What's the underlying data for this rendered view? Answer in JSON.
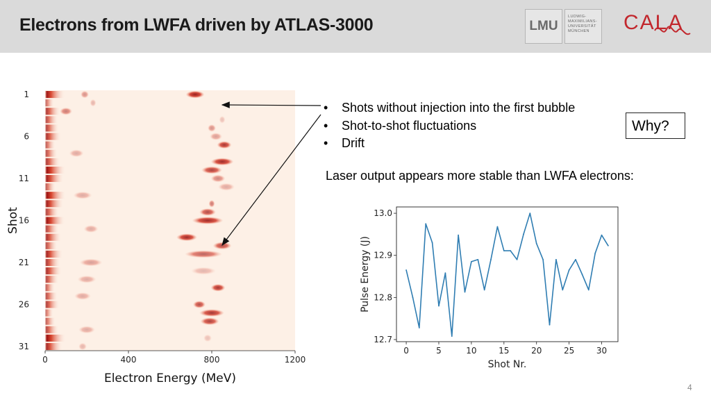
{
  "slide": {
    "title": "Electrons from LWFA driven by ATLAS-3000",
    "page_number": "4",
    "bullets": [
      "Shots without injection into the first bubble",
      "Shot-to-shot fluctuations",
      "Drift"
    ],
    "why_label": "Why?",
    "laser_statement": "Laser output appears more stable than LWFA electrons:"
  },
  "logos": {
    "lmu_mark": "LMU",
    "lmu_wordmark": [
      "LUDWIG-",
      "MAXIMILIANS-",
      "UNIVERSITÄT",
      "MÜNCHEN"
    ],
    "cala": "CALA",
    "cala_color": "#c2272d"
  },
  "colors": {
    "header_bg": "#dadada",
    "line_color": "#2f7db2",
    "heatmap_dark": "#8b0a0a",
    "heatmap_bg": "#fdf0e6"
  },
  "chart_data": [
    {
      "type": "heatmap",
      "xlabel": "Electron Energy (MeV)",
      "ylabel": "Shot",
      "xlim": [
        0,
        1200
      ],
      "ylim": [
        1,
        31
      ],
      "x_ticks": [
        0,
        400,
        800,
        1200
      ],
      "y_ticks": [
        1,
        6,
        11,
        16,
        21,
        26,
        31
      ],
      "y_inverted": true,
      "colormap": "Reds",
      "peaks": [
        {
          "shot": 1,
          "energy": 720,
          "width": 90,
          "intensity": 0.9
        },
        {
          "shot": 1,
          "energy": 190,
          "width": 40,
          "intensity": 0.4
        },
        {
          "shot": 2,
          "energy": 230,
          "width": 30,
          "intensity": 0.25
        },
        {
          "shot": 3,
          "energy": 100,
          "width": 60,
          "intensity": 0.5
        },
        {
          "shot": 4,
          "energy": 850,
          "width": 30,
          "intensity": 0.2
        },
        {
          "shot": 5,
          "energy": 800,
          "width": 40,
          "intensity": 0.4
        },
        {
          "shot": 6,
          "energy": 820,
          "width": 60,
          "intensity": 0.35
        },
        {
          "shot": 7,
          "energy": 860,
          "width": 70,
          "intensity": 0.8
        },
        {
          "shot": 8,
          "energy": 150,
          "width": 70,
          "intensity": 0.3
        },
        {
          "shot": 9,
          "energy": 850,
          "width": 110,
          "intensity": 0.85
        },
        {
          "shot": 10,
          "energy": 800,
          "width": 100,
          "intensity": 0.75
        },
        {
          "shot": 11,
          "energy": 830,
          "width": 70,
          "intensity": 0.45
        },
        {
          "shot": 12,
          "energy": 870,
          "width": 80,
          "intensity": 0.3
        },
        {
          "shot": 13,
          "energy": 180,
          "width": 90,
          "intensity": 0.3
        },
        {
          "shot": 14,
          "energy": 800,
          "width": 30,
          "intensity": 0.5
        },
        {
          "shot": 15,
          "energy": 780,
          "width": 80,
          "intensity": 0.7
        },
        {
          "shot": 16,
          "energy": 780,
          "width": 150,
          "intensity": 0.85
        },
        {
          "shot": 17,
          "energy": 220,
          "width": 70,
          "intensity": 0.3
        },
        {
          "shot": 18,
          "energy": 680,
          "width": 100,
          "intensity": 0.85
        },
        {
          "shot": 19,
          "energy": 850,
          "width": 90,
          "intensity": 0.7
        },
        {
          "shot": 20,
          "energy": 760,
          "width": 180,
          "intensity": 0.6
        },
        {
          "shot": 21,
          "energy": 220,
          "width": 110,
          "intensity": 0.35
        },
        {
          "shot": 22,
          "energy": 760,
          "width": 120,
          "intensity": 0.25
        },
        {
          "shot": 23,
          "energy": 200,
          "width": 90,
          "intensity": 0.3
        },
        {
          "shot": 24,
          "energy": 830,
          "width": 70,
          "intensity": 0.8
        },
        {
          "shot": 25,
          "energy": 180,
          "width": 80,
          "intensity": 0.3
        },
        {
          "shot": 26,
          "energy": 740,
          "width": 60,
          "intensity": 0.7
        },
        {
          "shot": 27,
          "energy": 800,
          "width": 120,
          "intensity": 0.8
        },
        {
          "shot": 28,
          "energy": 790,
          "width": 90,
          "intensity": 0.75
        },
        {
          "shot": 29,
          "energy": 200,
          "width": 80,
          "intensity": 0.3
        },
        {
          "shot": 30,
          "energy": 780,
          "width": 40,
          "intensity": 0.2
        },
        {
          "shot": 31,
          "energy": 180,
          "width": 40,
          "intensity": 0.25
        }
      ]
    },
    {
      "type": "line",
      "xlabel": "Shot Nr.",
      "ylabel": "Pulse Energy (J)",
      "xlim": [
        -1.5,
        32.5
      ],
      "ylim": [
        12.695,
        13.015
      ],
      "x_ticks": [
        0,
        5,
        10,
        15,
        20,
        25,
        30
      ],
      "y_ticks": [
        12.7,
        12.8,
        12.9,
        13.0
      ],
      "y_tick_labels": [
        "12.7",
        "12.8",
        "12.9",
        "13.0"
      ],
      "x": [
        0,
        1,
        2,
        3,
        4,
        5,
        6,
        7,
        8,
        9,
        10,
        11,
        12,
        13,
        14,
        15,
        16,
        17,
        18,
        19,
        20,
        21,
        22,
        23,
        24,
        25,
        26,
        27,
        28,
        29,
        30,
        31
      ],
      "values": [
        12.865,
        12.8,
        12.728,
        12.975,
        12.93,
        12.78,
        12.858,
        12.708,
        12.948,
        12.813,
        12.885,
        12.89,
        12.818,
        12.89,
        12.968,
        12.911,
        12.911,
        12.89,
        12.95,
        13.0,
        12.928,
        12.89,
        12.735,
        12.89,
        12.818,
        12.865,
        12.89,
        12.855,
        12.818,
        12.905,
        12.948,
        12.923
      ]
    }
  ]
}
